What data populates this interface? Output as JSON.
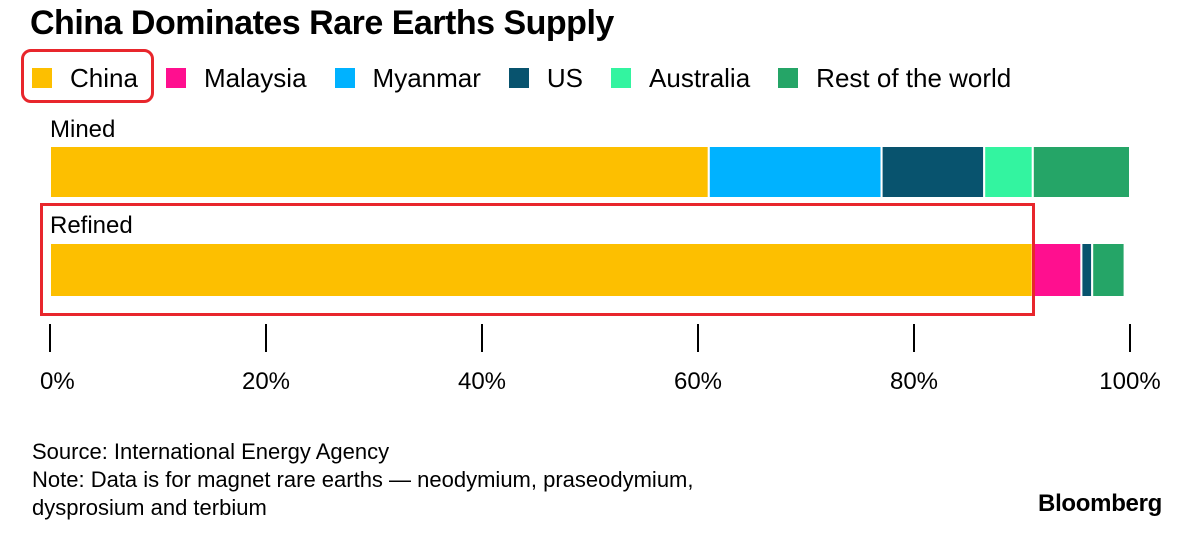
{
  "chart_data": {
    "type": "bar",
    "orientation": "horizontal",
    "stacked": true,
    "title": "China Dominates Rare Earths Supply",
    "categories": [
      "Mined",
      "Refined"
    ],
    "series": [
      {
        "name": "China",
        "color": "#fdbf00",
        "values": [
          61,
          91
        ]
      },
      {
        "name": "Malaysia",
        "color": "#ff0f8f",
        "values": [
          0,
          4.5
        ]
      },
      {
        "name": "Myanmar",
        "color": "#00b2ff",
        "values": [
          16,
          0
        ]
      },
      {
        "name": "US",
        "color": "#08536e",
        "values": [
          9.5,
          1
        ]
      },
      {
        "name": "Australia",
        "color": "#33f4a0",
        "values": [
          4.5,
          0
        ]
      },
      {
        "name": "Rest of the world",
        "color": "#25a567",
        "values": [
          9,
          3
        ]
      }
    ],
    "xlim": [
      0,
      100
    ],
    "xticks": [
      0,
      20,
      40,
      60,
      80,
      100
    ],
    "xtick_labels": [
      "0%",
      "20%",
      "40%",
      "60%",
      "80%",
      "100%"
    ],
    "legend_position": "top-left",
    "grid": false
  },
  "footer": {
    "source": "Source: International Energy Agency",
    "note_line1": "Note: Data is for magnet rare earths — neodymium, praseodymium,",
    "note_line2": "dysprosium and terbium",
    "brand": "Bloomberg"
  },
  "annotations": {
    "highlight_color": "#e8262c",
    "highlighted_legend_item": "China",
    "highlighted_category": "Refined"
  }
}
